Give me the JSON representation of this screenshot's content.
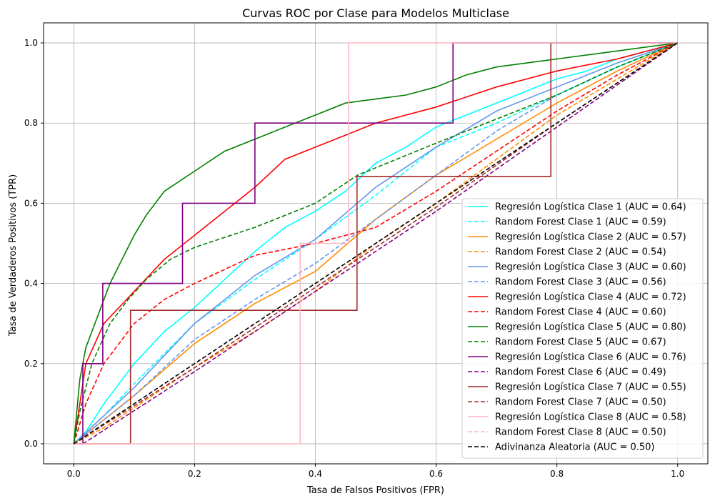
{
  "chart_data": {
    "type": "line",
    "title": "Curvas ROC por Clase para Modelos Multiclase",
    "xlabel": "Tasa de Falsos Positivos (FPR)",
    "ylabel": "Tasa de Verdaderos Positivos (TPR)",
    "xlim": [
      -0.05,
      1.05
    ],
    "ylim": [
      -0.05,
      1.05
    ],
    "xticks": [
      "0.0",
      "0.2",
      "0.4",
      "0.6",
      "0.8",
      "1.0"
    ],
    "yticks": [
      "0.0",
      "0.2",
      "0.4",
      "0.6",
      "0.8",
      "1.0"
    ],
    "grid": true,
    "legend_position": "lower-right",
    "series": [
      {
        "name": "Regresión Logística Clase 1 (AUC = 0.64)",
        "color": "#00ffff",
        "dash": "solid",
        "x": [
          0,
          0.02,
          0.05,
          0.1,
          0.15,
          0.2,
          0.25,
          0.3,
          0.35,
          0.4,
          0.45,
          0.5,
          0.55,
          0.6,
          0.65,
          0.7,
          0.75,
          0.8,
          0.85,
          0.9,
          0.95,
          1.0
        ],
        "y": [
          0,
          0.03,
          0.1,
          0.2,
          0.28,
          0.34,
          0.41,
          0.48,
          0.54,
          0.58,
          0.63,
          0.7,
          0.74,
          0.79,
          0.82,
          0.85,
          0.88,
          0.91,
          0.93,
          0.96,
          0.98,
          1.0
        ]
      },
      {
        "name": "Random Forest Clase 1 (AUC = 0.59)",
        "color": "#00ffff",
        "dash": "dashed",
        "x": [
          0,
          0.05,
          0.1,
          0.2,
          0.3,
          0.4,
          0.5,
          0.6,
          0.7,
          0.8,
          0.9,
          1.0
        ],
        "y": [
          0,
          0.07,
          0.15,
          0.3,
          0.41,
          0.51,
          0.62,
          0.74,
          0.8,
          0.87,
          0.94,
          1.0
        ]
      },
      {
        "name": "Regresión Logística Clase 2 (AUC = 0.57)",
        "color": "#ff8c00",
        "dash": "solid",
        "x": [
          0,
          0.05,
          0.1,
          0.2,
          0.3,
          0.4,
          0.5,
          0.6,
          0.7,
          0.8,
          0.9,
          1.0
        ],
        "y": [
          0,
          0.06,
          0.12,
          0.25,
          0.35,
          0.43,
          0.56,
          0.67,
          0.76,
          0.85,
          0.93,
          1.0
        ]
      },
      {
        "name": "Random Forest Clase 2 (AUC = 0.54)",
        "color": "#ff8c00",
        "dash": "dashed",
        "x": [
          0,
          0.05,
          0.1,
          0.2,
          0.3,
          0.4,
          0.5,
          0.6,
          0.7,
          0.8,
          0.9,
          1.0
        ],
        "y": [
          0,
          0.04,
          0.09,
          0.19,
          0.28,
          0.38,
          0.5,
          0.6,
          0.71,
          0.82,
          0.91,
          1.0
        ]
      },
      {
        "name": "Regresión Logística Clase 3 (AUC = 0.60)",
        "color": "#6495ed",
        "dash": "solid",
        "x": [
          0,
          0.05,
          0.1,
          0.2,
          0.3,
          0.4,
          0.5,
          0.6,
          0.7,
          0.8,
          0.9,
          1.0
        ],
        "y": [
          0,
          0.07,
          0.14,
          0.3,
          0.42,
          0.51,
          0.64,
          0.74,
          0.83,
          0.89,
          0.95,
          1.0
        ]
      },
      {
        "name": "Random Forest Clase 3 (AUC = 0.56)",
        "color": "#6495ed",
        "dash": "dashed",
        "x": [
          0,
          0.05,
          0.1,
          0.2,
          0.3,
          0.4,
          0.5,
          0.6,
          0.7,
          0.8,
          0.9,
          1.0
        ],
        "y": [
          0,
          0.06,
          0.12,
          0.26,
          0.36,
          0.45,
          0.56,
          0.67,
          0.78,
          0.87,
          0.94,
          1.0
        ]
      },
      {
        "name": "Regresión Logística Clase 4 (AUC = 0.72)",
        "color": "#ff0000",
        "dash": "solid",
        "x": [
          0,
          0.02,
          0.05,
          0.1,
          0.15,
          0.2,
          0.25,
          0.3,
          0.35,
          0.4,
          0.45,
          0.5,
          0.6,
          0.7,
          0.8,
          0.9,
          1.0
        ],
        "y": [
          0,
          0.2,
          0.3,
          0.38,
          0.46,
          0.52,
          0.58,
          0.64,
          0.71,
          0.74,
          0.77,
          0.8,
          0.84,
          0.89,
          0.93,
          0.96,
          1.0
        ]
      },
      {
        "name": "Random Forest Clase 4 (AUC = 0.60)",
        "color": "#ff0000",
        "dash": "dashed",
        "x": [
          0,
          0.02,
          0.05,
          0.1,
          0.15,
          0.2,
          0.3,
          0.4,
          0.5,
          0.6,
          0.7,
          0.8,
          0.9,
          1.0
        ],
        "y": [
          0,
          0.1,
          0.2,
          0.3,
          0.36,
          0.4,
          0.47,
          0.5,
          0.54,
          0.63,
          0.73,
          0.83,
          0.92,
          1.0
        ]
      },
      {
        "name": "Regresión Logística Clase 5 (AUC = 0.80)",
        "color": "#008000",
        "dash": "solid",
        "x": [
          0,
          0.01,
          0.02,
          0.04,
          0.06,
          0.08,
          0.1,
          0.12,
          0.15,
          0.2,
          0.25,
          0.3,
          0.35,
          0.4,
          0.45,
          0.5,
          0.55,
          0.6,
          0.65,
          0.7,
          0.8,
          0.9,
          1.0
        ],
        "y": [
          0,
          0.16,
          0.24,
          0.32,
          0.4,
          0.46,
          0.52,
          0.57,
          0.63,
          0.68,
          0.73,
          0.76,
          0.79,
          0.82,
          0.85,
          0.86,
          0.87,
          0.89,
          0.92,
          0.94,
          0.96,
          0.98,
          1.0
        ]
      },
      {
        "name": "Random Forest Clase 5 (AUC = 0.67)",
        "color": "#008000",
        "dash": "dashed",
        "x": [
          0,
          0.01,
          0.03,
          0.06,
          0.09,
          0.12,
          0.16,
          0.2,
          0.3,
          0.4,
          0.47,
          0.6,
          0.7,
          0.8,
          0.9,
          1.0
        ],
        "y": [
          0,
          0.08,
          0.2,
          0.3,
          0.36,
          0.41,
          0.46,
          0.49,
          0.54,
          0.6,
          0.67,
          0.75,
          0.81,
          0.87,
          0.94,
          1.0
        ]
      },
      {
        "name": "Regresión Logística Clase 6 (AUC = 0.76)",
        "color": "#800080",
        "dash": "solid",
        "x": [
          0,
          0.015,
          0.015,
          0.048,
          0.048,
          0.18,
          0.18,
          0.3,
          0.3,
          0.628,
          0.628,
          1.0
        ],
        "y": [
          0,
          0,
          0.2,
          0.2,
          0.4,
          0.4,
          0.6,
          0.6,
          0.8,
          0.8,
          1.0,
          1.0
        ]
      },
      {
        "name": "Random Forest Clase 6 (AUC = 0.49)",
        "color": "#800080",
        "dash": "dashed",
        "x": [
          0.015,
          0.2,
          0.4,
          0.6,
          0.8,
          1.0
        ],
        "y": [
          0,
          0.18,
          0.38,
          0.58,
          0.79,
          1.0
        ]
      },
      {
        "name": "Regresión Logística Clase 7 (AUC = 0.55)",
        "color": "#a52a2a",
        "dash": "solid",
        "x": [
          0,
          0.094,
          0.094,
          0.469,
          0.469,
          0.79,
          0.79,
          1.0
        ],
        "y": [
          0,
          0,
          0.333,
          0.333,
          0.667,
          0.667,
          1.0,
          1.0
        ]
      },
      {
        "name": "Random Forest Clase 7 (AUC = 0.50)",
        "color": "#a52a2a",
        "dash": "dashed",
        "x": [
          0,
          0.2,
          0.4,
          0.6,
          0.8,
          1.0
        ],
        "y": [
          0,
          0.19,
          0.39,
          0.59,
          0.8,
          1.0
        ]
      },
      {
        "name": "Regresión Logística Clase 8 (AUC = 0.58)",
        "color": "#ffb6c1",
        "dash": "solid",
        "x": [
          0,
          0.375,
          0.375,
          0.455,
          0.455,
          1.0
        ],
        "y": [
          0,
          0,
          0.5,
          0.5,
          1.0,
          1.0
        ]
      },
      {
        "name": "Random Forest Clase 8 (AUC = 0.50)",
        "color": "#ffb6c1",
        "dash": "dashed",
        "x": [
          0,
          1.0
        ],
        "y": [
          0,
          1.0
        ]
      },
      {
        "name": "Adivinanza Aleatoria (AUC = 0.50)",
        "color": "#000000",
        "dash": "dashed",
        "x": [
          0,
          1.0
        ],
        "y": [
          0,
          1.0
        ]
      }
    ]
  }
}
